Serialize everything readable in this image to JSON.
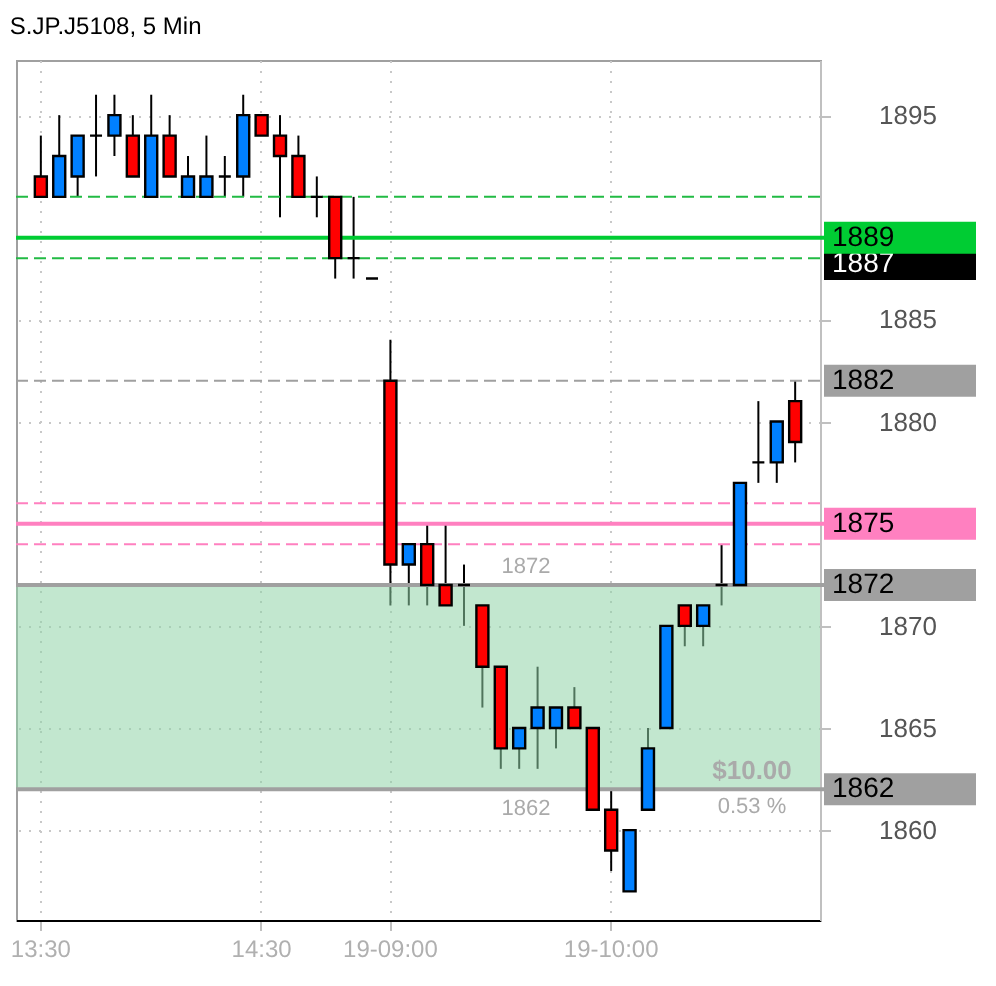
{
  "chart_data": {
    "type": "candlestick",
    "title": "S.JP.J5108, 5 Min",
    "categories": [
      "13:30",
      null,
      null,
      null,
      null,
      null,
      null,
      null,
      null,
      null,
      null,
      null,
      "14:30",
      null,
      null,
      null,
      null,
      null,
      null,
      "19-09:00",
      null,
      null,
      null,
      null,
      null,
      null,
      null,
      null,
      null,
      null,
      null,
      "19-10:00",
      null,
      null,
      null,
      null,
      null,
      null,
      null,
      null,
      null,
      null
    ],
    "ohlc": [
      [
        1892,
        1894,
        1891,
        1891
      ],
      [
        1891,
        1895,
        1891,
        1893
      ],
      [
        1892,
        1894,
        1891,
        1894
      ],
      [
        1894,
        1896,
        1892,
        1894
      ],
      [
        1894,
        1896,
        1893,
        1895
      ],
      [
        1894,
        1895,
        1892,
        1892
      ],
      [
        1891,
        1896,
        1891,
        1894
      ],
      [
        1894,
        1895,
        1892,
        1892
      ],
      [
        1891,
        1893,
        1891,
        1892
      ],
      [
        1891,
        1894,
        1891,
        1892
      ],
      [
        1892,
        1893,
        1891,
        1892
      ],
      [
        1892,
        1896,
        1891,
        1895
      ],
      [
        1895,
        1895,
        1894,
        1894
      ],
      [
        1894,
        1895,
        1890,
        1893
      ],
      [
        1893,
        1894,
        1891,
        1891
      ],
      [
        1891,
        1892,
        1890,
        1891
      ],
      [
        1891,
        1891,
        1887,
        1888
      ],
      [
        1888,
        1891,
        1887,
        1888
      ],
      [
        1887,
        1887,
        1887,
        1887
      ],
      [
        1882,
        1884,
        1871,
        1873
      ],
      [
        1873,
        1874,
        1871,
        1874
      ],
      [
        1874,
        1875,
        1871,
        1872
      ],
      [
        1872,
        1875,
        1871,
        1871
      ],
      [
        1872,
        1873,
        1870,
        1872
      ],
      [
        1871,
        1871,
        1866,
        1868
      ],
      [
        1868,
        1868,
        1863,
        1864
      ],
      [
        1864,
        1865,
        1863,
        1865
      ],
      [
        1865,
        1868,
        1863,
        1866
      ],
      [
        1865,
        1866,
        1864,
        1866
      ],
      [
        1866,
        1867,
        1865,
        1865
      ],
      [
        1865,
        1865,
        1861,
        1861
      ],
      [
        1861,
        1862,
        1858,
        1859
      ],
      [
        1857,
        1860,
        1857,
        1860
      ],
      [
        1861,
        1865,
        1861,
        1864
      ],
      [
        1865,
        1870,
        1865,
        1870
      ],
      [
        1871,
        1871,
        1869,
        1870
      ],
      [
        1870,
        1871,
        1869,
        1871
      ],
      [
        1872,
        1874,
        1871,
        1872
      ],
      [
        1872,
        1877,
        1872,
        1877
      ],
      [
        1878,
        1881,
        1877,
        1878
      ],
      [
        1878,
        1880,
        1877,
        1880
      ],
      [
        1881,
        1882,
        1878,
        1879
      ]
    ],
    "colors": [
      "#ff0000",
      "#0080ff",
      "#0080ff",
      "#000000",
      "#0080ff",
      "#ff0000",
      "#0080ff",
      "#ff0000",
      "#0080ff",
      "#0080ff",
      "#000000",
      "#0080ff",
      "#ff0000",
      "#ff0000",
      "#ff0000",
      "#000000",
      "#ff0000",
      "#000000",
      "#000000",
      "#ff0000",
      "#0080ff",
      "#ff0000",
      "#ff0000",
      "#000000",
      "#ff0000",
      "#ff0000",
      "#0080ff",
      "#0080ff",
      "#0080ff",
      "#ff0000",
      "#ff0000",
      "#ff0000",
      "#0080ff",
      "#0080ff",
      "#0080ff",
      "#ff0000",
      "#0080ff",
      "#000000",
      "#0080ff",
      "#000000",
      "#0080ff",
      "#ff0000"
    ],
    "ylim": [
      1855.6,
      1897.7
    ],
    "yticks": [
      1860,
      1865,
      1870,
      1880,
      1885,
      1895
    ],
    "grid": true,
    "ref_lines": [
      {
        "axis": "y",
        "value": 1891,
        "color": "#22bb44",
        "line_style": "dashed"
      },
      {
        "axis": "y",
        "value": 1889,
        "label": "1889",
        "color": "#00cc33",
        "line_style": "solid"
      },
      {
        "axis": "y",
        "value": 1888,
        "color": "#22bb44",
        "line_style": "dashed"
      },
      {
        "axis": "y",
        "value": 1882,
        "label": "1882",
        "color": "#a0a0a0",
        "line_style": "dashed"
      },
      {
        "axis": "y",
        "value": 1876,
        "color": "#ff80c0",
        "line_style": "dashed"
      },
      {
        "axis": "y",
        "value": 1875,
        "label": "1875",
        "color": "#ff80c0",
        "line_style": "solid"
      },
      {
        "axis": "y",
        "value": 1874,
        "color": "#ff80c0",
        "line_style": "dashed"
      },
      {
        "axis": "y",
        "value": 1872,
        "label": "1872",
        "color": "#a0a0a0",
        "line_style": "solid"
      },
      {
        "axis": "y",
        "value": 1862,
        "label": "1862",
        "color": "#a0a0a0",
        "line_style": "solid"
      }
    ],
    "bands": [
      {
        "axis": "y",
        "from": 1862,
        "to": 1872,
        "color": "#8fd4a8"
      }
    ],
    "annotations": [
      "1887",
      {
        "text": "1872",
        "y": 1872
      },
      {
        "text": "1862",
        "y": 1862
      },
      {
        "text": "$10.00",
        "y": 1862
      },
      {
        "text": "0.53 %",
        "y": 1862
      }
    ]
  }
}
